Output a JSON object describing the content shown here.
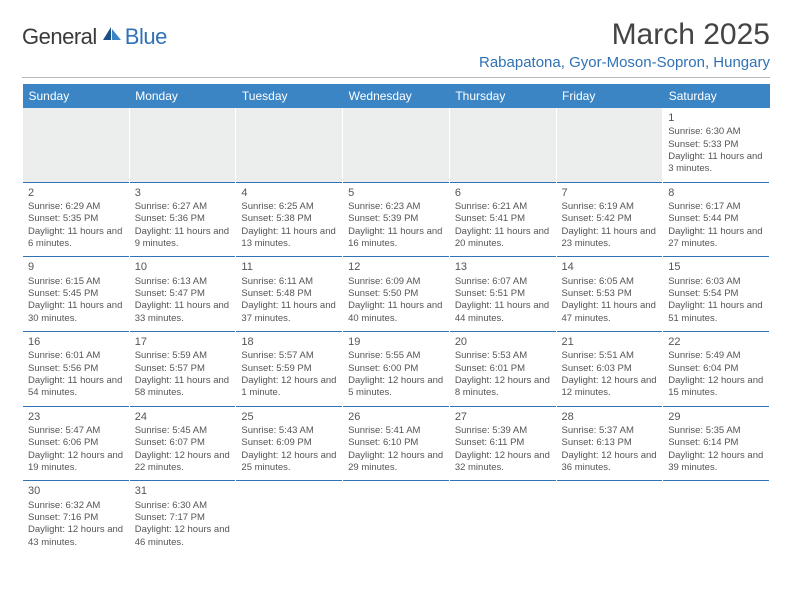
{
  "logo": {
    "general": "General",
    "blue": "Blue"
  },
  "title": "March 2025",
  "location": "Rabapatona, Gyor-Moson-Sopron, Hungary",
  "header_bg": "#3b85c5",
  "header_fg": "#ffffff",
  "accent": "#2f72b5",
  "days": [
    "Sunday",
    "Monday",
    "Tuesday",
    "Wednesday",
    "Thursday",
    "Friday",
    "Saturday"
  ],
  "weeks": [
    [
      null,
      null,
      null,
      null,
      null,
      null,
      {
        "n": "1",
        "sr": "6:30 AM",
        "ss": "5:33 PM",
        "dl": "11 hours and 3 minutes."
      }
    ],
    [
      {
        "n": "2",
        "sr": "6:29 AM",
        "ss": "5:35 PM",
        "dl": "11 hours and 6 minutes."
      },
      {
        "n": "3",
        "sr": "6:27 AM",
        "ss": "5:36 PM",
        "dl": "11 hours and 9 minutes."
      },
      {
        "n": "4",
        "sr": "6:25 AM",
        "ss": "5:38 PM",
        "dl": "11 hours and 13 minutes."
      },
      {
        "n": "5",
        "sr": "6:23 AM",
        "ss": "5:39 PM",
        "dl": "11 hours and 16 minutes."
      },
      {
        "n": "6",
        "sr": "6:21 AM",
        "ss": "5:41 PM",
        "dl": "11 hours and 20 minutes."
      },
      {
        "n": "7",
        "sr": "6:19 AM",
        "ss": "5:42 PM",
        "dl": "11 hours and 23 minutes."
      },
      {
        "n": "8",
        "sr": "6:17 AM",
        "ss": "5:44 PM",
        "dl": "11 hours and 27 minutes."
      }
    ],
    [
      {
        "n": "9",
        "sr": "6:15 AM",
        "ss": "5:45 PM",
        "dl": "11 hours and 30 minutes."
      },
      {
        "n": "10",
        "sr": "6:13 AM",
        "ss": "5:47 PM",
        "dl": "11 hours and 33 minutes."
      },
      {
        "n": "11",
        "sr": "6:11 AM",
        "ss": "5:48 PM",
        "dl": "11 hours and 37 minutes."
      },
      {
        "n": "12",
        "sr": "6:09 AM",
        "ss": "5:50 PM",
        "dl": "11 hours and 40 minutes."
      },
      {
        "n": "13",
        "sr": "6:07 AM",
        "ss": "5:51 PM",
        "dl": "11 hours and 44 minutes."
      },
      {
        "n": "14",
        "sr": "6:05 AM",
        "ss": "5:53 PM",
        "dl": "11 hours and 47 minutes."
      },
      {
        "n": "15",
        "sr": "6:03 AM",
        "ss": "5:54 PM",
        "dl": "11 hours and 51 minutes."
      }
    ],
    [
      {
        "n": "16",
        "sr": "6:01 AM",
        "ss": "5:56 PM",
        "dl": "11 hours and 54 minutes."
      },
      {
        "n": "17",
        "sr": "5:59 AM",
        "ss": "5:57 PM",
        "dl": "11 hours and 58 minutes."
      },
      {
        "n": "18",
        "sr": "5:57 AM",
        "ss": "5:59 PM",
        "dl": "12 hours and 1 minute."
      },
      {
        "n": "19",
        "sr": "5:55 AM",
        "ss": "6:00 PM",
        "dl": "12 hours and 5 minutes."
      },
      {
        "n": "20",
        "sr": "5:53 AM",
        "ss": "6:01 PM",
        "dl": "12 hours and 8 minutes."
      },
      {
        "n": "21",
        "sr": "5:51 AM",
        "ss": "6:03 PM",
        "dl": "12 hours and 12 minutes."
      },
      {
        "n": "22",
        "sr": "5:49 AM",
        "ss": "6:04 PM",
        "dl": "12 hours and 15 minutes."
      }
    ],
    [
      {
        "n": "23",
        "sr": "5:47 AM",
        "ss": "6:06 PM",
        "dl": "12 hours and 19 minutes."
      },
      {
        "n": "24",
        "sr": "5:45 AM",
        "ss": "6:07 PM",
        "dl": "12 hours and 22 minutes."
      },
      {
        "n": "25",
        "sr": "5:43 AM",
        "ss": "6:09 PM",
        "dl": "12 hours and 25 minutes."
      },
      {
        "n": "26",
        "sr": "5:41 AM",
        "ss": "6:10 PM",
        "dl": "12 hours and 29 minutes."
      },
      {
        "n": "27",
        "sr": "5:39 AM",
        "ss": "6:11 PM",
        "dl": "12 hours and 32 minutes."
      },
      {
        "n": "28",
        "sr": "5:37 AM",
        "ss": "6:13 PM",
        "dl": "12 hours and 36 minutes."
      },
      {
        "n": "29",
        "sr": "5:35 AM",
        "ss": "6:14 PM",
        "dl": "12 hours and 39 minutes."
      }
    ],
    [
      {
        "n": "30",
        "sr": "6:32 AM",
        "ss": "7:16 PM",
        "dl": "12 hours and 43 minutes."
      },
      {
        "n": "31",
        "sr": "6:30 AM",
        "ss": "7:17 PM",
        "dl": "12 hours and 46 minutes."
      },
      null,
      null,
      null,
      null,
      null
    ]
  ],
  "labels": {
    "sunrise": "Sunrise: ",
    "sunset": "Sunset: ",
    "daylight": "Daylight: "
  }
}
